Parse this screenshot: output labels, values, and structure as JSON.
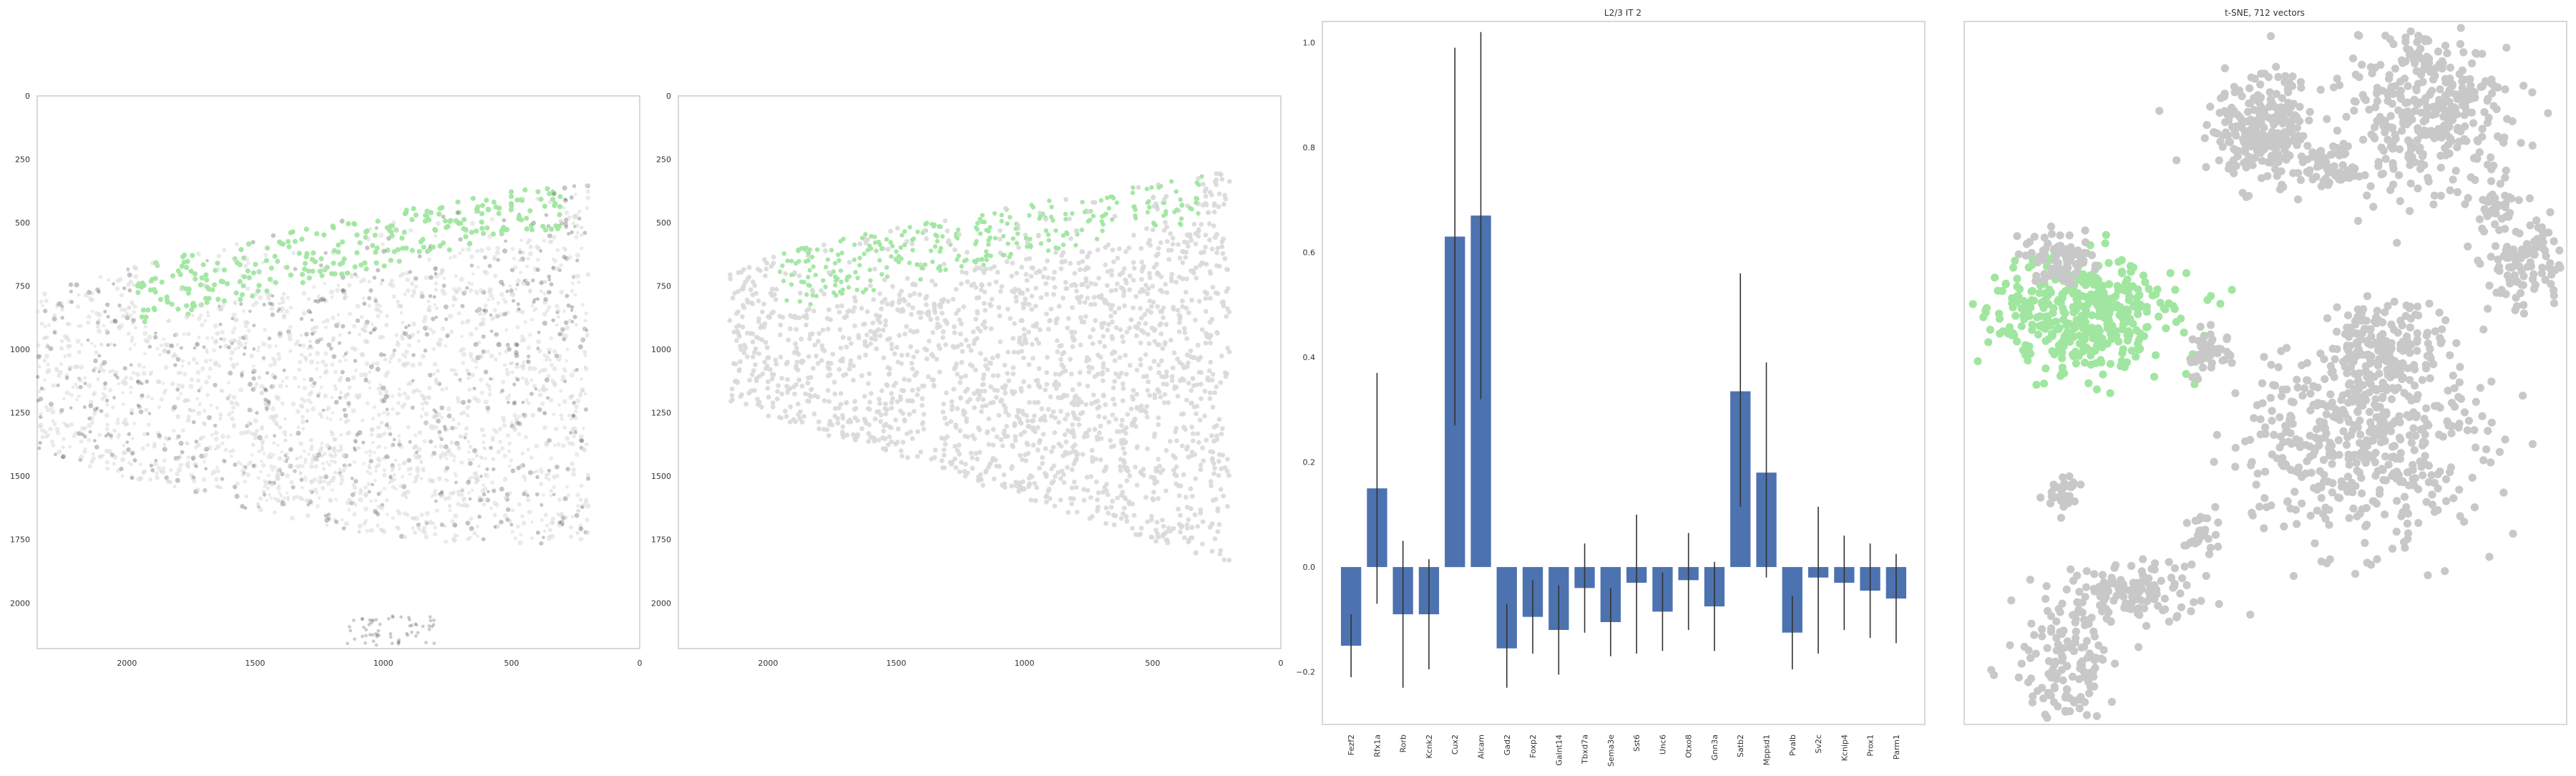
{
  "colors": {
    "highlight": "#a0e6a0",
    "background_cells": "#d9d9d9",
    "dark_cells": "#555555",
    "bar": "#4c72b0",
    "errorbar": "#333333",
    "tsne_gray": "#c8c8c8"
  },
  "chart_data": [
    {
      "type": "scatter",
      "title": "",
      "xlabel": "",
      "ylabel": "",
      "xlim": [
        2350,
        0
      ],
      "ylim": [
        2180,
        0
      ],
      "x_ticks": [
        "2000",
        "1500",
        "1000",
        "500",
        "0"
      ],
      "x_tick_values": [
        2000,
        1500,
        1000,
        500,
        0
      ],
      "y_ticks": [
        "0",
        "250",
        "500",
        "750",
        "1000",
        "1250",
        "1500",
        "1750",
        "2000"
      ],
      "y_tick_values": [
        0,
        250,
        500,
        750,
        1000,
        1250,
        1500,
        1750,
        2000
      ],
      "grid": false,
      "highlight_color": "#a0e6a0"
    },
    {
      "type": "scatter",
      "title": "",
      "xlabel": "",
      "ylabel": "",
      "xlim": [
        2350,
        0
      ],
      "ylim": [
        2180,
        0
      ],
      "x_ticks": [
        "2000",
        "1500",
        "1000",
        "500",
        "0"
      ],
      "x_tick_values": [
        2000,
        1500,
        1000,
        500,
        0
      ],
      "y_ticks": [
        "0",
        "250",
        "500",
        "750",
        "1000",
        "1250",
        "1500",
        "1750",
        "2000"
      ],
      "y_tick_values": [
        0,
        250,
        500,
        750,
        1000,
        1250,
        1500,
        1750,
        2000
      ],
      "grid": false,
      "highlight_color": "#a0e6a0"
    },
    {
      "type": "bar",
      "title": "L2/3 IT 2",
      "xlabel": "",
      "ylabel": "",
      "ylim": [
        -0.3,
        1.04
      ],
      "y_ticks": [
        "−0.2",
        "0.0",
        "0.2",
        "0.4",
        "0.6",
        "0.8",
        "1.0"
      ],
      "y_tick_values": [
        -0.2,
        0.0,
        0.2,
        0.4,
        0.6,
        0.8,
        1.0
      ],
      "grid": false,
      "categories": [
        "Fezf2",
        "Rfx1a",
        "Rorb",
        "Kcnk2",
        "Cux2",
        "Alcam",
        "Gad2",
        "Foxp2",
        "Galnt14",
        "Tbxd7a",
        "Sema3e",
        "Sst6",
        "Unc6",
        "Otxo8",
        "Gnn3a",
        "Satb2",
        "Mppsd1",
        "Pvalb",
        "Sv2c",
        "Kcnip4",
        "Prox1",
        "Parm1"
      ],
      "values": [
        -0.15,
        0.15,
        -0.09,
        -0.09,
        0.63,
        0.67,
        -0.155,
        -0.095,
        -0.12,
        -0.04,
        -0.105,
        -0.03,
        -0.085,
        -0.025,
        -0.075,
        0.335,
        0.18,
        -0.125,
        -0.02,
        -0.03,
        -0.045,
        -0.06
      ],
      "error_low": [
        -0.21,
        -0.07,
        -0.23,
        -0.195,
        0.27,
        0.32,
        -0.23,
        -0.165,
        -0.205,
        -0.125,
        -0.17,
        -0.165,
        -0.16,
        -0.12,
        -0.16,
        0.115,
        -0.02,
        -0.195,
        -0.165,
        -0.12,
        -0.135,
        -0.145
      ],
      "error_high": [
        -0.09,
        0.37,
        0.05,
        0.015,
        0.99,
        1.02,
        -0.07,
        -0.025,
        -0.035,
        0.045,
        -0.04,
        0.1,
        -0.01,
        0.065,
        0.01,
        0.56,
        0.39,
        -0.055,
        0.115,
        0.06,
        0.045,
        0.025
      ]
    },
    {
      "type": "scatter",
      "title": "t-SNE, 712 vectors",
      "xlabel": "",
      "ylabel": "",
      "grid": false,
      "highlight_color": "#a0e6a0",
      "point_color": "#c8c8c8"
    }
  ]
}
